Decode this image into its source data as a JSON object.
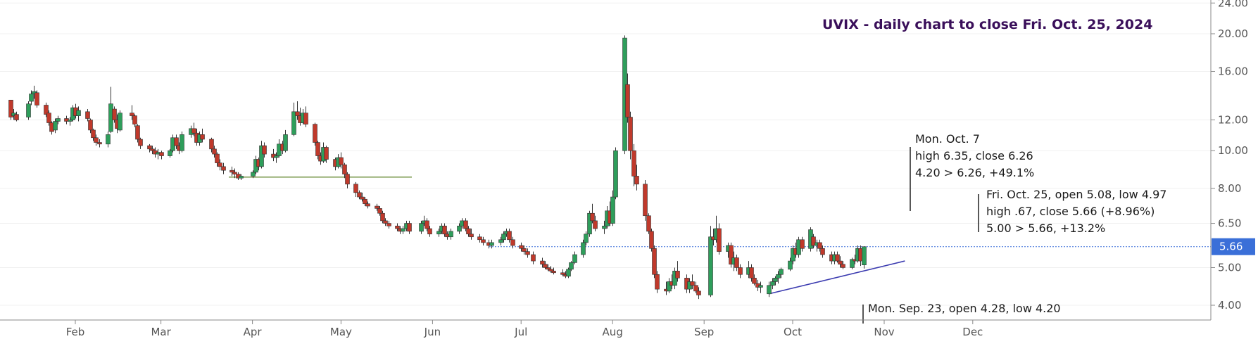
{
  "chart_data": {
    "type": "candlestick",
    "title": "UVIX - daily chart to close Fri. Oct. 25, 2024",
    "y_scale": "log",
    "ylim": [
      3.7,
      24
    ],
    "y_ticks": [
      "4.00",
      "5.00",
      "6.50",
      "8.00",
      "10.00",
      "12.00",
      "16.00",
      "20.00",
      "24.00"
    ],
    "x_ticks": [
      "Feb",
      "Mar",
      "Apr",
      "May",
      "Jun",
      "Jul",
      "Aug",
      "Sep",
      "Oct",
      "Nov",
      "Dec"
    ],
    "last_price": "5.66",
    "colors": {
      "up": "#2e9e5b",
      "down": "#c0392b",
      "support": "#6b8e3a",
      "trend": "#3b3bb0",
      "price_line": "#3a6fd8",
      "badge": "#3a6fd8"
    },
    "annotations": [
      {
        "lines": [
          "Mon. Oct. 7",
          "high 6.35, close 6.26",
          "4.20 > 6.26, +49.1%"
        ]
      },
      {
        "lines": [
          "Fri. Oct. 25, open 5.08, low 4.97",
          "high .67, close 5.66 (+8.96%)",
          "5.00 > 5.66, +13.2%"
        ]
      },
      {
        "lines": [
          "Mon. Sep. 23, open 4.28, low 4.20"
        ]
      }
    ],
    "candles": [
      [
        "2024-01-10",
        13.5,
        13.4,
        12.0,
        12.2
      ],
      [
        "2024-01-11",
        12.3,
        12.8,
        12.0,
        12.5
      ],
      [
        "2024-01-12",
        12.4,
        12.6,
        11.9,
        12.0
      ],
      [
        "2024-01-16",
        12.2,
        13.4,
        12.0,
        13.2
      ],
      [
        "2024-01-17",
        13.4,
        14.3,
        13.1,
        14.0
      ],
      [
        "2024-01-18",
        14.0,
        14.7,
        13.6,
        14.2
      ],
      [
        "2024-01-19",
        14.1,
        14.3,
        12.9,
        13.1
      ],
      [
        "2024-01-22",
        13.1,
        13.3,
        12.2,
        12.4
      ],
      [
        "2024-01-23",
        12.5,
        12.7,
        11.6,
        11.8
      ],
      [
        "2024-01-24",
        11.8,
        11.9,
        11.0,
        11.2
      ],
      [
        "2024-01-25",
        11.3,
        12.1,
        11.1,
        11.9
      ],
      [
        "2024-01-26",
        11.9,
        12.3,
        11.7,
        12.1
      ],
      [
        "2024-01-29",
        12.1,
        12.3,
        11.7,
        11.9
      ],
      [
        "2024-01-30",
        11.9,
        12.2,
        11.6,
        12.0
      ],
      [
        "2024-01-31",
        12.0,
        13.1,
        11.9,
        12.9
      ],
      [
        "2024-02-01",
        12.9,
        13.2,
        12.1,
        12.3
      ],
      [
        "2024-02-02",
        12.3,
        13.0,
        11.9,
        12.7
      ],
      [
        "2024-02-05",
        12.6,
        12.8,
        11.9,
        12.1
      ],
      [
        "2024-02-06",
        12.0,
        12.1,
        11.1,
        11.3
      ],
      [
        "2024-02-07",
        11.3,
        11.4,
        10.6,
        10.8
      ],
      [
        "2024-02-08",
        10.8,
        11.0,
        10.3,
        10.5
      ],
      [
        "2024-02-09",
        10.5,
        10.7,
        10.2,
        10.4
      ],
      [
        "2024-02-12",
        10.4,
        11.2,
        10.2,
        11.0
      ],
      [
        "2024-02-13",
        11.2,
        14.6,
        11.1,
        13.2
      ],
      [
        "2024-02-14",
        12.8,
        13.0,
        11.8,
        12.0
      ],
      [
        "2024-02-15",
        12.0,
        12.4,
        11.1,
        11.4
      ],
      [
        "2024-02-16",
        11.3,
        12.7,
        11.2,
        12.5
      ],
      [
        "2024-02-20",
        12.5,
        13.1,
        12.0,
        12.3
      ],
      [
        "2024-02-21",
        12.3,
        12.4,
        11.5,
        11.7
      ],
      [
        "2024-02-22",
        11.6,
        11.7,
        10.5,
        10.7
      ],
      [
        "2024-02-23",
        10.7,
        10.8,
        10.1,
        10.3
      ],
      [
        "2024-02-26",
        10.3,
        10.4,
        9.9,
        10.1
      ],
      [
        "2024-02-27",
        10.1,
        10.3,
        9.8,
        10.0
      ],
      [
        "2024-02-28",
        10.0,
        10.2,
        9.6,
        9.8
      ],
      [
        "2024-02-29",
        9.8,
        10.1,
        9.5,
        9.9
      ],
      [
        "2024-03-01",
        9.9,
        10.0,
        9.5,
        9.7
      ],
      [
        "2024-03-04",
        9.7,
        10.1,
        9.6,
        10.0
      ],
      [
        "2024-03-05",
        10.0,
        11.0,
        9.9,
        10.8
      ],
      [
        "2024-03-06",
        10.8,
        11.0,
        10.1,
        10.3
      ],
      [
        "2024-03-07",
        10.3,
        10.5,
        9.8,
        10.0
      ],
      [
        "2024-03-08",
        10.0,
        11.2,
        9.9,
        11.0
      ],
      [
        "2024-03-11",
        11.0,
        11.6,
        10.8,
        11.4
      ],
      [
        "2024-03-12",
        11.4,
        11.8,
        10.9,
        11.1
      ],
      [
        "2024-03-13",
        11.1,
        11.4,
        10.3,
        10.5
      ],
      [
        "2024-03-14",
        10.5,
        11.2,
        10.3,
        11.0
      ],
      [
        "2024-03-15",
        11.0,
        11.4,
        10.5,
        10.7
      ],
      [
        "2024-03-18",
        10.7,
        10.8,
        9.9,
        10.1
      ],
      [
        "2024-03-19",
        10.1,
        10.3,
        9.6,
        9.8
      ],
      [
        "2024-03-20",
        9.8,
        9.9,
        9.1,
        9.3
      ],
      [
        "2024-03-21",
        9.3,
        9.5,
        8.9,
        9.1
      ],
      [
        "2024-03-22",
        9.1,
        9.3,
        8.7,
        8.9
      ],
      [
        "2024-03-25",
        8.9,
        9.1,
        8.6,
        8.8
      ],
      [
        "2024-03-26",
        8.8,
        9.0,
        8.5,
        8.7
      ],
      [
        "2024-03-27",
        8.7,
        8.8,
        8.4,
        8.5
      ],
      [
        "2024-03-28",
        8.5,
        8.7,
        8.4,
        8.6
      ],
      [
        "2024-04-01",
        8.6,
        8.9,
        8.5,
        8.8
      ],
      [
        "2024-04-02",
        8.8,
        9.7,
        8.7,
        9.5
      ],
      [
        "2024-04-03",
        9.5,
        9.6,
        8.9,
        9.1
      ],
      [
        "2024-04-04",
        9.1,
        10.6,
        9.0,
        10.3
      ],
      [
        "2024-04-05",
        10.3,
        10.5,
        9.6,
        9.8
      ],
      [
        "2024-04-08",
        9.8,
        10.1,
        9.4,
        9.6
      ],
      [
        "2024-04-09",
        9.6,
        9.9,
        9.3,
        9.7
      ],
      [
        "2024-04-10",
        9.7,
        10.7,
        9.6,
        10.4
      ],
      [
        "2024-04-11",
        10.4,
        10.6,
        9.8,
        10.0
      ],
      [
        "2024-04-12",
        10.0,
        11.3,
        9.9,
        11.0
      ],
      [
        "2024-04-15",
        11.0,
        13.3,
        10.9,
        12.6
      ],
      [
        "2024-04-16",
        12.6,
        13.4,
        12.0,
        12.3
      ],
      [
        "2024-04-17",
        12.3,
        12.9,
        11.6,
        11.8
      ],
      [
        "2024-04-18",
        11.8,
        12.8,
        11.7,
        12.5
      ],
      [
        "2024-04-19",
        12.5,
        13.0,
        11.5,
        11.7
      ],
      [
        "2024-04-22",
        11.7,
        11.8,
        10.3,
        10.5
      ],
      [
        "2024-04-23",
        10.5,
        10.6,
        9.5,
        9.7
      ],
      [
        "2024-04-24",
        9.7,
        9.9,
        9.2,
        9.4
      ],
      [
        "2024-04-25",
        9.4,
        10.5,
        9.3,
        10.2
      ],
      [
        "2024-04-26",
        10.2,
        10.3,
        9.3,
        9.5
      ],
      [
        "2024-04-29",
        9.5,
        9.6,
        8.9,
        9.1
      ],
      [
        "2024-04-30",
        9.1,
        9.8,
        9.0,
        9.6
      ],
      [
        "2024-05-01",
        9.6,
        9.9,
        9.0,
        9.2
      ],
      [
        "2024-05-02",
        9.2,
        9.3,
        8.5,
        8.7
      ],
      [
        "2024-05-03",
        8.7,
        8.8,
        8.0,
        8.2
      ],
      [
        "2024-05-06",
        8.2,
        8.3,
        7.6,
        7.8
      ],
      [
        "2024-05-07",
        7.8,
        7.9,
        7.5,
        7.6
      ],
      [
        "2024-05-08",
        7.6,
        7.8,
        7.4,
        7.5
      ],
      [
        "2024-05-09",
        7.5,
        7.6,
        7.2,
        7.3
      ],
      [
        "2024-05-10",
        7.3,
        7.4,
        7.1,
        7.2
      ],
      [
        "2024-05-13",
        7.2,
        7.3,
        7.0,
        7.1
      ],
      [
        "2024-05-14",
        7.1,
        7.2,
        6.8,
        6.9
      ],
      [
        "2024-05-15",
        6.9,
        7.0,
        6.5,
        6.6
      ],
      [
        "2024-05-16",
        6.6,
        6.7,
        6.4,
        6.5
      ],
      [
        "2024-05-17",
        6.5,
        6.6,
        6.3,
        6.4
      ],
      [
        "2024-05-20",
        6.4,
        6.5,
        6.2,
        6.3
      ],
      [
        "2024-05-21",
        6.3,
        6.4,
        6.1,
        6.2
      ],
      [
        "2024-05-22",
        6.2,
        6.4,
        6.1,
        6.3
      ],
      [
        "2024-05-23",
        6.3,
        6.6,
        6.2,
        6.5
      ],
      [
        "2024-05-24",
        6.5,
        6.6,
        6.1,
        6.2
      ],
      [
        "2024-05-28",
        6.2,
        6.6,
        6.1,
        6.5
      ],
      [
        "2024-05-29",
        6.5,
        6.8,
        6.4,
        6.6
      ],
      [
        "2024-05-30",
        6.6,
        6.7,
        6.2,
        6.3
      ],
      [
        "2024-05-31",
        6.3,
        6.4,
        6.0,
        6.1
      ],
      [
        "2024-06-03",
        6.1,
        6.3,
        6.0,
        6.2
      ],
      [
        "2024-06-04",
        6.2,
        6.5,
        6.1,
        6.4
      ],
      [
        "2024-06-05",
        6.4,
        6.5,
        6.0,
        6.1
      ],
      [
        "2024-06-06",
        6.1,
        6.2,
        5.9,
        6.0
      ],
      [
        "2024-06-07",
        6.0,
        6.3,
        5.9,
        6.2
      ],
      [
        "2024-06-10",
        6.2,
        6.5,
        6.1,
        6.4
      ],
      [
        "2024-06-11",
        6.4,
        6.7,
        6.3,
        6.6
      ],
      [
        "2024-06-12",
        6.6,
        6.7,
        6.2,
        6.3
      ],
      [
        "2024-06-13",
        6.3,
        6.4,
        6.0,
        6.1
      ],
      [
        "2024-06-14",
        6.1,
        6.3,
        5.9,
        6.0
      ],
      [
        "2024-06-17",
        6.0,
        6.1,
        5.8,
        5.9
      ],
      [
        "2024-06-18",
        5.9,
        6.0,
        5.7,
        5.8
      ],
      [
        "2024-06-20",
        5.8,
        5.9,
        5.6,
        5.7
      ],
      [
        "2024-06-21",
        5.7,
        5.9,
        5.6,
        5.8
      ],
      [
        "2024-06-24",
        5.8,
        6.0,
        5.7,
        5.9
      ],
      [
        "2024-06-25",
        5.9,
        6.2,
        5.8,
        6.1
      ],
      [
        "2024-06-26",
        6.1,
        6.3,
        6.0,
        6.2
      ],
      [
        "2024-06-27",
        6.2,
        6.3,
        5.8,
        5.9
      ],
      [
        "2024-06-28",
        5.9,
        6.0,
        5.6,
        5.7
      ],
      [
        "2024-07-01",
        5.7,
        5.8,
        5.5,
        5.6
      ],
      [
        "2024-07-02",
        5.6,
        5.7,
        5.4,
        5.5
      ],
      [
        "2024-07-03",
        5.5,
        5.6,
        5.3,
        5.4
      ],
      [
        "2024-07-05",
        5.4,
        5.5,
        5.1,
        5.2
      ],
      [
        "2024-07-08",
        5.2,
        5.3,
        5.0,
        5.1
      ],
      [
        "2024-07-09",
        5.1,
        5.2,
        4.95,
        5.0
      ],
      [
        "2024-07-10",
        5.0,
        5.1,
        4.9,
        4.95
      ],
      [
        "2024-07-11",
        4.95,
        5.05,
        4.85,
        4.9
      ],
      [
        "2024-07-12",
        4.9,
        5.0,
        4.8,
        4.85
      ],
      [
        "2024-07-15",
        4.85,
        4.95,
        4.75,
        4.8
      ],
      [
        "2024-07-16",
        4.8,
        4.9,
        4.7,
        4.75
      ],
      [
        "2024-07-17",
        4.75,
        5.0,
        4.7,
        4.95
      ],
      [
        "2024-07-18",
        4.95,
        5.2,
        4.9,
        5.15
      ],
      [
        "2024-07-19",
        5.15,
        5.5,
        5.1,
        5.4
      ],
      [
        "2024-07-22",
        5.4,
        5.9,
        5.3,
        5.8
      ],
      [
        "2024-07-23",
        5.8,
        6.2,
        5.7,
        6.1
      ],
      [
        "2024-07-24",
        6.1,
        7.0,
        6.0,
        6.9
      ],
      [
        "2024-07-25",
        6.9,
        7.3,
        6.5,
        6.6
      ],
      [
        "2024-07-26",
        6.6,
        6.8,
        6.2,
        6.3
      ],
      [
        "2024-07-29",
        6.3,
        6.6,
        6.1,
        6.4
      ],
      [
        "2024-07-30",
        6.4,
        7.2,
        6.3,
        7.0
      ],
      [
        "2024-07-31",
        7.0,
        7.4,
        6.4,
        6.5
      ],
      [
        "2024-08-01",
        6.5,
        7.9,
        6.4,
        7.6
      ],
      [
        "2024-08-02",
        7.6,
        10.2,
        7.5,
        10.0
      ],
      [
        "2024-08-05",
        10.0,
        19.8,
        9.8,
        19.5
      ],
      [
        "2024-08-06",
        14.8,
        15.8,
        11.8,
        12.2
      ],
      [
        "2024-08-07",
        12.2,
        12.6,
        9.5,
        10.0
      ],
      [
        "2024-08-08",
        10.0,
        10.4,
        8.1,
        8.6
      ],
      [
        "2024-08-09",
        8.6,
        9.2,
        7.9,
        8.2
      ],
      [
        "2024-08-12",
        8.2,
        8.4,
        6.6,
        6.8
      ],
      [
        "2024-08-13",
        6.8,
        6.9,
        6.1,
        6.2
      ],
      [
        "2024-08-14",
        6.2,
        6.3,
        5.5,
        5.6
      ],
      [
        "2024-08-15",
        5.6,
        5.7,
        4.7,
        4.8
      ],
      [
        "2024-08-16",
        4.8,
        4.9,
        4.3,
        4.4
      ],
      [
        "2024-08-19",
        4.4,
        4.6,
        4.25,
        4.35
      ],
      [
        "2024-08-20",
        4.35,
        4.7,
        4.3,
        4.6
      ],
      [
        "2024-08-21",
        4.6,
        4.8,
        4.4,
        4.5
      ],
      [
        "2024-08-22",
        4.5,
        5.0,
        4.4,
        4.9
      ],
      [
        "2024-08-23",
        4.9,
        5.2,
        4.6,
        4.7
      ],
      [
        "2024-08-26",
        4.7,
        4.8,
        4.3,
        4.4
      ],
      [
        "2024-08-27",
        4.4,
        4.7,
        4.3,
        4.6
      ],
      [
        "2024-08-28",
        4.6,
        4.8,
        4.4,
        4.5
      ],
      [
        "2024-08-29",
        4.5,
        4.6,
        4.3,
        4.35
      ],
      [
        "2024-08-30",
        4.35,
        4.45,
        4.15,
        4.25
      ],
      [
        "2024-09-03",
        4.25,
        6.4,
        4.2,
        6.0
      ],
      [
        "2024-09-04",
        6.0,
        6.3,
        5.7,
        5.9
      ],
      [
        "2024-09-05",
        5.9,
        6.8,
        5.8,
        6.3
      ],
      [
        "2024-09-06",
        6.3,
        6.5,
        5.4,
        5.5
      ],
      [
        "2024-09-09",
        5.5,
        5.8,
        5.3,
        5.7
      ],
      [
        "2024-09-10",
        5.7,
        5.8,
        5.0,
        5.1
      ],
      [
        "2024-09-11",
        5.1,
        5.5,
        4.9,
        5.3
      ],
      [
        "2024-09-12",
        5.3,
        5.4,
        4.9,
        5.0
      ],
      [
        "2024-09-13",
        5.0,
        5.1,
        4.7,
        4.8
      ],
      [
        "2024-09-16",
        4.8,
        5.2,
        4.7,
        5.0
      ],
      [
        "2024-09-17",
        5.0,
        5.1,
        4.6,
        4.7
      ],
      [
        "2024-09-18",
        4.7,
        4.8,
        4.5,
        4.55
      ],
      [
        "2024-09-19",
        4.55,
        4.65,
        4.35,
        4.45
      ],
      [
        "2024-09-20",
        4.45,
        4.6,
        4.3,
        4.5
      ],
      [
        "2024-09-23",
        4.28,
        4.6,
        4.2,
        4.5
      ],
      [
        "2024-09-24",
        4.5,
        4.7,
        4.4,
        4.6
      ],
      [
        "2024-09-25",
        4.6,
        4.75,
        4.5,
        4.7
      ],
      [
        "2024-09-26",
        4.7,
        4.9,
        4.55,
        4.8
      ],
      [
        "2024-09-27",
        4.8,
        5.0,
        4.7,
        4.95
      ],
      [
        "2024-09-30",
        4.95,
        5.3,
        4.9,
        5.2
      ],
      [
        "2024-10-01",
        5.2,
        5.7,
        5.1,
        5.6
      ],
      [
        "2024-10-02",
        5.6,
        5.8,
        5.3,
        5.4
      ],
      [
        "2024-10-03",
        5.4,
        6.0,
        5.3,
        5.9
      ],
      [
        "2024-10-04",
        5.9,
        6.0,
        5.5,
        5.6
      ],
      [
        "2024-10-07",
        5.6,
        6.35,
        5.5,
        6.26
      ],
      [
        "2024-10-08",
        6.0,
        6.1,
        5.6,
        5.7
      ],
      [
        "2024-10-09",
        5.7,
        5.9,
        5.5,
        5.8
      ],
      [
        "2024-10-10",
        5.8,
        5.9,
        5.5,
        5.6
      ],
      [
        "2024-10-11",
        5.6,
        5.7,
        5.3,
        5.4
      ],
      [
        "2024-10-14",
        5.4,
        5.5,
        5.1,
        5.2
      ],
      [
        "2024-10-15",
        5.2,
        5.5,
        5.1,
        5.4
      ],
      [
        "2024-10-16",
        5.4,
        5.5,
        5.15,
        5.2
      ],
      [
        "2024-10-17",
        5.2,
        5.35,
        5.0,
        5.1
      ],
      [
        "2024-10-18",
        5.1,
        5.2,
        4.95,
        5.0
      ],
      [
        "2024-10-21",
        5.0,
        5.3,
        4.95,
        5.25
      ],
      [
        "2024-10-22",
        5.25,
        5.4,
        5.1,
        5.2
      ],
      [
        "2024-10-23",
        5.2,
        5.7,
        5.15,
        5.6
      ],
      [
        "2024-10-24",
        5.6,
        5.7,
        5.05,
        5.2
      ],
      [
        "2024-10-25",
        5.08,
        5.67,
        4.97,
        5.66
      ]
    ]
  }
}
